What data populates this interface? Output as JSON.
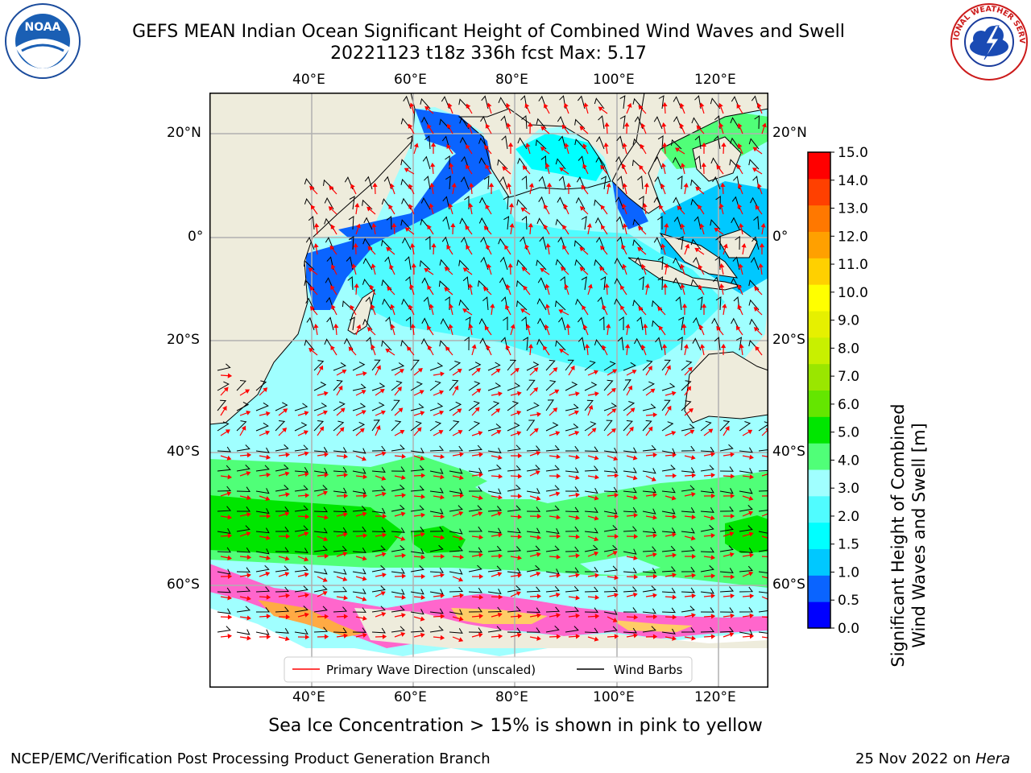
{
  "header": {
    "title_line1": "GEFS MEAN Indian Ocean Significant Height of Combined Wind Waves and Swell",
    "title_line2": "20221123 t18z 336h fcst   Max: 5.17"
  },
  "logos": {
    "left": {
      "icon": "noaa-logo",
      "text": "NOAA"
    },
    "right": {
      "icon": "nws-logo",
      "text": "NATIONAL WEATHER SERVICE"
    }
  },
  "map": {
    "lon_ticks": [
      "40°E",
      "60°E",
      "80°E",
      "100°E",
      "120°E"
    ],
    "lat_ticks": [
      "20°N",
      "0°",
      "20°S",
      "40°S",
      "60°S"
    ],
    "legend": {
      "wave": "Primary Wave Direction (unscaled)",
      "barb": "Wind Barbs"
    },
    "colors": {
      "land": "#eeecdc",
      "ice": "#ff66cc",
      "grid": "#b0b0b0",
      "wave_arrow": "#ff0000",
      "barb": "#000000"
    }
  },
  "colorbar": {
    "label_line1": "Significant Height of Combined",
    "label_line2": "Wind Waves and Swell [m]",
    "ticks": [
      "0.0",
      "0.5",
      "1.0",
      "1.5",
      "2.0",
      "3.0",
      "4.0",
      "5.0",
      "6.0",
      "7.0",
      "8.0",
      "9.0",
      "10.0",
      "11.0",
      "12.0",
      "13.0",
      "14.0",
      "15.0"
    ],
    "colors": [
      "#0000ff",
      "#0a64ff",
      "#00c8ff",
      "#00ffff",
      "#50fcff",
      "#a0ffff",
      "#50ff78",
      "#00e600",
      "#64e600",
      "#9ae600",
      "#c8f000",
      "#e6f000",
      "#ffff00",
      "#ffd000",
      "#ffa000",
      "#ff7800",
      "#ff4000",
      "#ff0000"
    ]
  },
  "footer": {
    "note": "Sea Ice Concentration > 15% is shown in pink to yellow",
    "left": "NCEP/EMC/Verification Post Processing Product Generation Branch",
    "right_prefix": "25 Nov 2022 on ",
    "right_machine": "Hera"
  }
}
